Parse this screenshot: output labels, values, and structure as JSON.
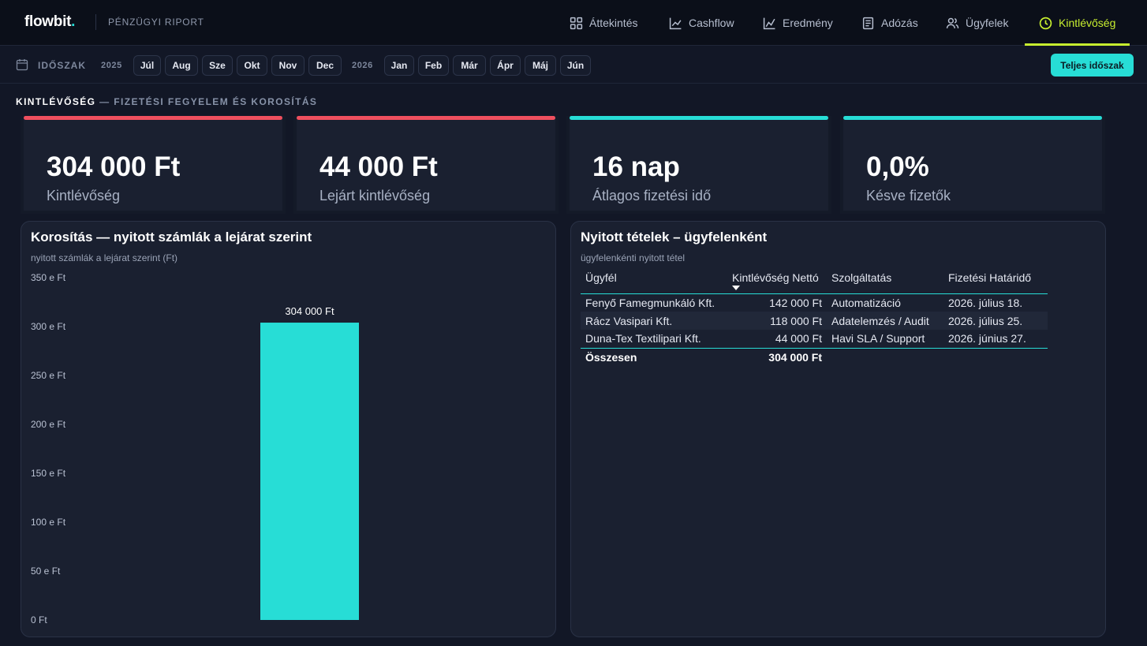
{
  "brand": {
    "name": "flowbit",
    "dot": ".",
    "subtitle": "PÉNZÜGYI RIPORT"
  },
  "nav": [
    {
      "label": "Áttekintés",
      "icon": "grid-icon",
      "active": false
    },
    {
      "label": "Cashflow",
      "icon": "line-chart-icon",
      "active": false
    },
    {
      "label": "Eredmény",
      "icon": "trend-icon",
      "active": false
    },
    {
      "label": "Adózás",
      "icon": "document-icon",
      "active": false
    },
    {
      "label": "Ügyfelek",
      "icon": "users-icon",
      "active": false
    },
    {
      "label": "Kintlévőség",
      "icon": "clock-icon",
      "active": true
    }
  ],
  "period": {
    "label": "IDŐSZAK",
    "year1": "2025",
    "months1": [
      "Júl",
      "Aug",
      "Sze",
      "Okt",
      "Nov",
      "Dec"
    ],
    "year2": "2026",
    "months2": [
      "Jan",
      "Feb",
      "Már",
      "Ápr",
      "Máj",
      "Jún"
    ],
    "full_button": "Teljes időszak"
  },
  "section": {
    "title": "KINTLÉVŐSÉG",
    "subtitle": " — FIZETÉSI FEGYELEM ÉS KOROSÍTÁS"
  },
  "kpis": [
    {
      "value": "304 000 Ft",
      "label": "Kintlévőség",
      "color": "#ef4f5e"
    },
    {
      "value": "44 000 Ft",
      "label": "Lejárt kintlévőség",
      "color": "#ef4f5e"
    },
    {
      "value": "16 nap",
      "label": "Átlagos fizetési idő",
      "color": "#27ddd6"
    },
    {
      "value": "0,0%",
      "label": "Késve fizetők",
      "color": "#27ddd6"
    }
  ],
  "aging_panel": {
    "title": "Korosítás — nyitott számlák a lejárat szerint",
    "subtitle": "nyitott számlák a lejárat szerint (Ft)"
  },
  "chart_data": {
    "type": "bar",
    "title": "Korosítás — nyitott számlák a lejárat szerint",
    "subtitle": "nyitott számlák a lejárat szerint (Ft)",
    "categories": [
      ""
    ],
    "values": [
      304000
    ],
    "data_labels": [
      "304 000 Ft"
    ],
    "ylim": [
      0,
      350000
    ],
    "yticks": [
      {
        "value": 0,
        "label": "0 Ft"
      },
      {
        "value": 50000,
        "label": "50 e Ft"
      },
      {
        "value": 100000,
        "label": "100 e Ft"
      },
      {
        "value": 150000,
        "label": "150 e Ft"
      },
      {
        "value": 200000,
        "label": "200 e Ft"
      },
      {
        "value": 250000,
        "label": "250 e Ft"
      },
      {
        "value": 300000,
        "label": "300 e Ft"
      },
      {
        "value": 350000,
        "label": "350 e Ft"
      }
    ],
    "grid": false,
    "bar_color": "#27ddd6"
  },
  "items_panel": {
    "title": "Nyitott tételek – ügyfelenként",
    "subtitle": "ügyfelenkénti nyitott tétel",
    "columns": [
      "Ügyfél",
      "Kintlévőség Nettó",
      "Szolgáltatás",
      "Fizetési Határidő"
    ],
    "rows": [
      {
        "client": "Fenyő Famegmunkáló Kft.",
        "amount": "142 000 Ft",
        "service": "Automatizáció",
        "due": "2026. július 18."
      },
      {
        "client": "Rácz Vasipari Kft.",
        "amount": "118 000 Ft",
        "service": "Adatelemzés / Audit",
        "due": "2026. július 25."
      },
      {
        "client": "Duna-Tex Textilipari Kft.",
        "amount": "44 000 Ft",
        "service": "Havi SLA / Support",
        "due": "2026. június 27."
      }
    ],
    "total_label": "Összesen",
    "total_amount": "304 000 Ft"
  }
}
